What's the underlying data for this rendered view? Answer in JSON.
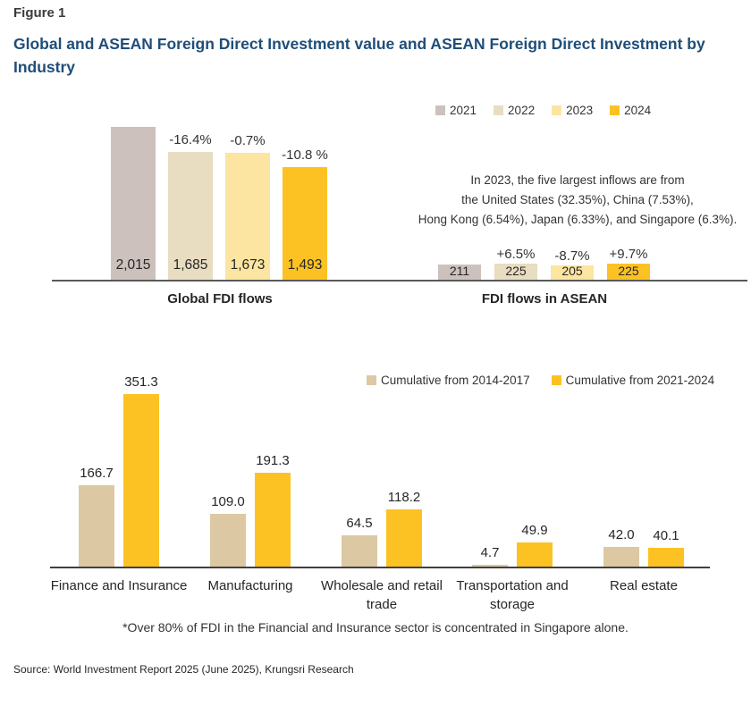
{
  "figure": {
    "label": "Figure 1",
    "title": "Global and ASEAN Foreign Direct Investment value and ASEAN Foreign Direct Investment by Industry"
  },
  "colors": {
    "title": "#1f4e79",
    "axis_top": "#595959",
    "axis_bottom": "#404040",
    "year_2021": "#ccc1bd",
    "year_2022": "#e8dcc1",
    "year_2023": "#fce5a0",
    "year_2024": "#fcc223",
    "cumulative_2014_2017": "#dcc9a3",
    "cumulative_2021_2024": "#fcc223"
  },
  "chart_data": [
    {
      "id": "global_fdi",
      "type": "bar",
      "title": "Global FDI flows",
      "categories": [
        "2021",
        "2022",
        "2023",
        "2024"
      ],
      "values": [
        2015,
        1685,
        1673,
        1493
      ],
      "value_labels": [
        "2,015",
        "1,685",
        "1,673",
        "1,493"
      ],
      "change_labels": [
        null,
        "-16.4%",
        "-0.7%",
        "-10.8 %"
      ],
      "bar_colors": [
        "#ccc1bd",
        "#e8dcc1",
        "#fce5a0",
        "#fcc223"
      ],
      "ylim": [
        0,
        2150
      ],
      "grid": false,
      "legend_position": "top-right-shared"
    },
    {
      "id": "asean_fdi",
      "type": "bar",
      "title": "FDI flows in ASEAN",
      "categories": [
        "2021",
        "2022",
        "2023",
        "2024"
      ],
      "values": [
        211,
        225,
        205,
        225
      ],
      "value_labels": [
        "211",
        "225",
        "205",
        "225"
      ],
      "change_labels": [
        null,
        "+6.5%",
        "-8.7%",
        "+9.7%"
      ],
      "bar_colors": [
        "#ccc1bd",
        "#e8dcc1",
        "#fce5a0",
        "#fcc223"
      ],
      "ylim": [
        0,
        2150
      ],
      "grid": false,
      "annotation": "In 2023, the five largest inflows are from the United States (32.35%), China (7.53%), Hong Kong (6.54%), Japan (6.33%), and Singapore (6.3%)."
    },
    {
      "id": "asean_fdi_by_industry",
      "type": "bar",
      "title": "",
      "categories": [
        "Finance and Insurance",
        "Manufacturing",
        "Wholesale and retail trade",
        "Transportation and storage",
        "Real estate"
      ],
      "series": [
        {
          "name": "Cumulative from 2014-2017",
          "color": "#dcc9a3",
          "values": [
            166.7,
            109.0,
            64.5,
            4.7,
            42.0
          ],
          "value_labels": [
            "166.7",
            "109.0",
            "64.5",
            "4.7",
            "42.0"
          ]
        },
        {
          "name": "Cumulative from 2021-2024",
          "color": "#fcc223",
          "values": [
            351.3,
            191.3,
            118.2,
            49.9,
            40.1
          ],
          "value_labels": [
            "351.3",
            "191.3",
            "118.2",
            "49.9",
            "40.1"
          ]
        }
      ],
      "ylim": [
        0,
        380
      ],
      "grid": false,
      "legend_position": "top-right"
    }
  ],
  "top_panel": {
    "annotation_lines": [
      "In 2023, the five largest inflows are from",
      "the United States (32.35%), China (7.53%),",
      "Hong Kong (6.54%), Japan (6.33%), and Singapore (6.3%)."
    ]
  },
  "footnote": "*Over 80% of FDI in the Financial and Insurance sector is concentrated in Singapore alone.",
  "source": "Source: World Investment Report 2025 (June 2025), Krungsri Research"
}
